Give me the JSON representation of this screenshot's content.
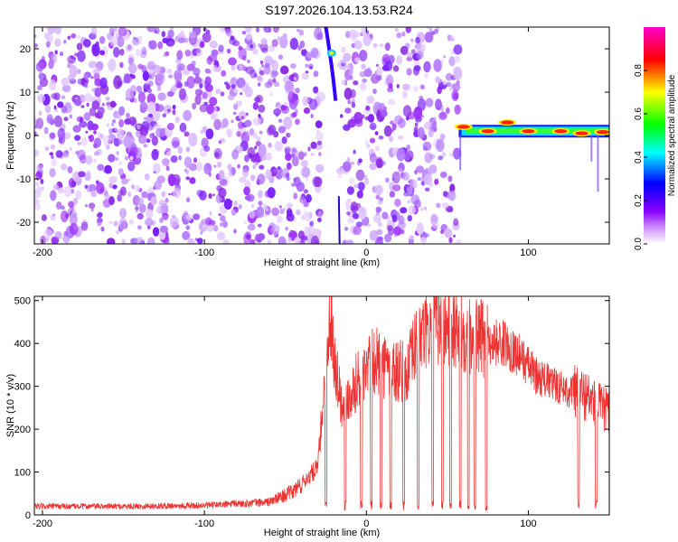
{
  "title": "S197.2026.104.13.53.R24",
  "chart_data": [
    {
      "type": "heatmap",
      "xlabel": "Height of straight line (km)",
      "ylabel": "Frequency (Hz)",
      "xlim": [
        -205,
        150
      ],
      "ylim": [
        -25,
        25
      ],
      "xticks": [
        -200,
        -100,
        0,
        100
      ],
      "yticks": [
        -20,
        -10,
        0,
        10,
        20
      ],
      "colorbar": {
        "label": "Normalized spectral amplitude",
        "range": [
          0,
          1
        ],
        "ticks": [
          0,
          0.2,
          0.4,
          0.6,
          0.8
        ],
        "tick_labels": [
          "0.0",
          "0.2",
          "0.4",
          "0.6",
          "0.8"
        ],
        "colors": [
          "#ffffff",
          "#9b30ff",
          "#0000ff",
          "#00ffff",
          "#00ff00",
          "#ffff00",
          "#ff0000",
          "#ff00ff"
        ]
      },
      "features": [
        {
          "name": "noise-field",
          "x_range": [
            -205,
            57
          ],
          "freq_range": [
            -25,
            25
          ],
          "amplitude": 0.1
        },
        {
          "name": "signal-streak",
          "x_range": [
            -25,
            -17
          ],
          "freq_range": [
            8,
            25
          ],
          "amplitude": 0.4
        },
        {
          "name": "carrier-band",
          "x_range": [
            57,
            150
          ],
          "freq_center": 1,
          "amplitude": 0.85
        }
      ]
    },
    {
      "type": "line",
      "xlabel": "Height of straight line (km)",
      "ylabel": "SNR (10 * v/v)",
      "xlim": [
        -205,
        150
      ],
      "ylim": [
        0,
        510
      ],
      "xticks": [
        -200,
        -100,
        0,
        100
      ],
      "yticks": [
        0,
        100,
        200,
        300,
        400,
        500
      ],
      "color": "#ee3333",
      "series": [
        {
          "name": "SNR",
          "x": [
            -205,
            -150,
            -100,
            -60,
            -45,
            -30,
            -22,
            -20,
            -15,
            -5,
            5,
            15,
            25,
            30,
            35,
            45,
            55,
            65,
            75,
            85,
            95,
            105,
            115,
            125,
            135,
            145,
            150
          ],
          "y": [
            20,
            20,
            22,
            30,
            55,
            110,
            480,
            380,
            250,
            320,
            360,
            340,
            330,
            390,
            420,
            445,
            430,
            420,
            405,
            400,
            370,
            325,
            305,
            290,
            280,
            250,
            240
          ]
        }
      ],
      "dropouts": [
        -25,
        -13,
        -3,
        3,
        9,
        15,
        23,
        32,
        41,
        47,
        52,
        58,
        63,
        67,
        74,
        131,
        142
      ]
    }
  ]
}
